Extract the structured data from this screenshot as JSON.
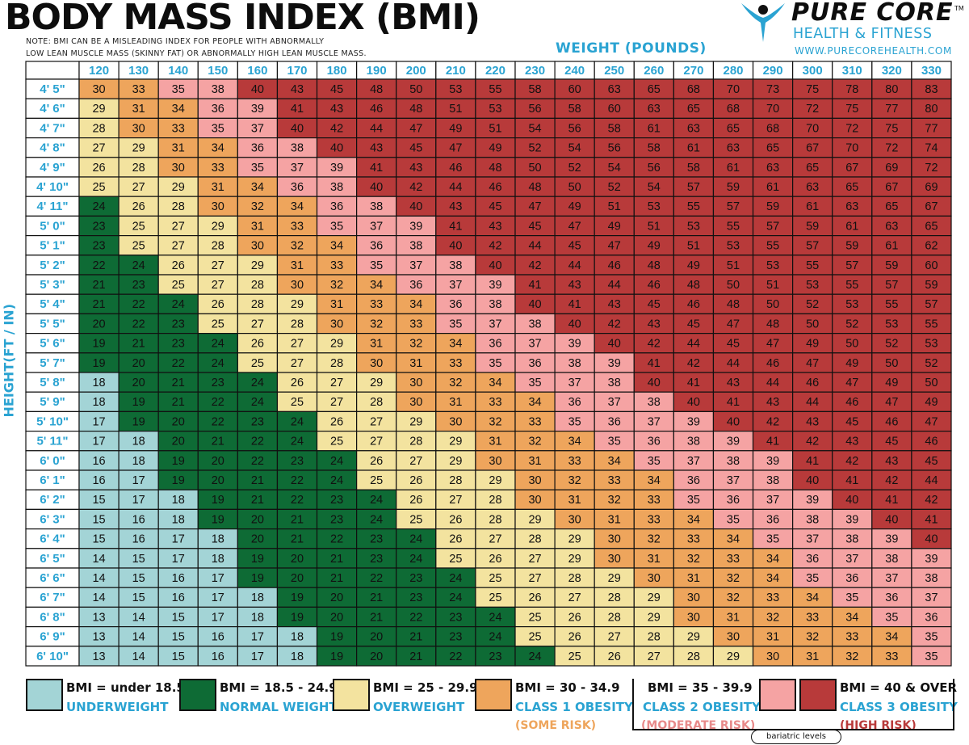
{
  "title": "BODY MASS INDEX  (BMI)",
  "note_line1": "NOTE: BMI CAN BE A MISLEADING INDEX FOR PEOPLE WITH ABNORMALLY",
  "note_line2": "LOW LEAN MUSCLE MASS (SKINNY FAT) OR ABNORMALLY HIGH LEAN MUSCLE MASS.",
  "brand": {
    "name": "PURE CORE",
    "tm": "TM",
    "tagline": "HEALTH & FITNESS",
    "url": "WWW.PURECOREHEALTH.COM"
  },
  "colors": {
    "underweight": "#a3d4d6",
    "normal": "#0e6b35",
    "overweight": "#f3e39f",
    "obese1": "#eea55c",
    "obese2": "#f5a3a3",
    "obese3": "#b83a3a",
    "header_bg": "#ffffff",
    "accent": "#2aa3d2"
  },
  "legend": [
    {
      "range": "BMI = under 18.5",
      "label": "UNDERWEIGHT",
      "sub": "",
      "color_key": "underweight"
    },
    {
      "range": "BMI = 18.5 - 24.9",
      "label": "NORMAL WEIGHT",
      "sub": "",
      "color_key": "normal"
    },
    {
      "range": "BMI = 25 - 29.9",
      "label": "OVERWEIGHT",
      "sub": "",
      "color_key": "overweight"
    },
    {
      "range": "BMI = 30 - 34.9",
      "label": "CLASS 1 OBESITY",
      "sub": "(SOME RISK)",
      "color_key": "obese1"
    },
    {
      "range": "BMI = 35 - 39.9",
      "label": "CLASS 2 OBESITY",
      "sub": "(MODERATE RISK)",
      "color_key": "obese2"
    },
    {
      "range": "BMI = 40 & OVER",
      "label": "CLASS 3 OBESITY",
      "sub": "(HIGH RISK)",
      "color_key": "obese3"
    }
  ],
  "bariatric_label": "bariatric levels",
  "chart_data": {
    "type": "heatmap",
    "title": "BODY MASS INDEX  (BMI)",
    "xlabel": "WEIGHT (POUNDS)",
    "ylabel": "HEIGHT(FT / IN)",
    "x": [
      120,
      130,
      140,
      150,
      160,
      170,
      180,
      190,
      200,
      210,
      220,
      230,
      240,
      250,
      260,
      270,
      280,
      290,
      300,
      310,
      320,
      330
    ],
    "y": [
      "4' 5\"",
      "4' 6\"",
      "4' 7\"",
      "4' 8\"",
      "4' 9\"",
      "4' 10\"",
      "4' 11\"",
      "5' 0\"",
      "5' 1\"",
      "5' 2\"",
      "5' 3\"",
      "5' 4\"",
      "5' 5\"",
      "5' 6\"",
      "5' 7\"",
      "5' 8\"",
      "5' 9\"",
      "5' 10\"",
      "5' 11\"",
      "6' 0\"",
      "6' 1\"",
      "6' 2\"",
      "6' 3\"",
      "6' 4\"",
      "6' 5\"",
      "6' 6\"",
      "6' 7\"",
      "6' 8\"",
      "6' 9\"",
      "6' 10\""
    ],
    "values": [
      [
        30,
        33,
        35,
        38,
        40,
        43,
        45,
        48,
        50,
        53,
        55,
        58,
        60,
        63,
        65,
        68,
        70,
        73,
        75,
        78,
        80,
        83
      ],
      [
        29,
        31,
        34,
        36,
        39,
        41,
        43,
        46,
        48,
        51,
        53,
        56,
        58,
        60,
        63,
        65,
        68,
        70,
        72,
        75,
        77,
        80
      ],
      [
        28,
        30,
        33,
        35,
        37,
        40,
        42,
        44,
        47,
        49,
        51,
        54,
        56,
        58,
        61,
        63,
        65,
        68,
        70,
        72,
        75,
        77
      ],
      [
        27,
        29,
        31,
        34,
        36,
        38,
        40,
        43,
        45,
        47,
        49,
        52,
        54,
        56,
        58,
        61,
        63,
        65,
        67,
        70,
        72,
        74
      ],
      [
        26,
        28,
        30,
        33,
        35,
        37,
        39,
        41,
        43,
        46,
        48,
        50,
        52,
        54,
        56,
        58,
        61,
        63,
        65,
        67,
        69,
        72
      ],
      [
        25,
        27,
        29,
        31,
        34,
        36,
        38,
        40,
        42,
        44,
        46,
        48,
        50,
        52,
        54,
        57,
        59,
        61,
        63,
        65,
        67,
        69
      ],
      [
        24,
        26,
        28,
        30,
        32,
        34,
        36,
        38,
        40,
        43,
        45,
        47,
        49,
        51,
        53,
        55,
        57,
        59,
        61,
        63,
        65,
        67
      ],
      [
        23,
        25,
        27,
        29,
        31,
        33,
        35,
        37,
        39,
        41,
        43,
        45,
        47,
        49,
        51,
        53,
        55,
        57,
        59,
        61,
        63,
        65
      ],
      [
        23,
        25,
        27,
        28,
        30,
        32,
        34,
        36,
        38,
        40,
        42,
        44,
        45,
        47,
        49,
        51,
        53,
        55,
        57,
        59,
        61,
        62
      ],
      [
        22,
        24,
        26,
        27,
        29,
        31,
        33,
        35,
        37,
        38,
        40,
        42,
        44,
        46,
        48,
        49,
        51,
        53,
        55,
        57,
        59,
        60
      ],
      [
        21,
        23,
        25,
        27,
        28,
        30,
        32,
        34,
        36,
        37,
        39,
        41,
        43,
        44,
        46,
        48,
        50,
        51,
        53,
        55,
        57,
        59
      ],
      [
        21,
        22,
        24,
        26,
        28,
        29,
        31,
        33,
        34,
        36,
        38,
        40,
        41,
        43,
        45,
        46,
        48,
        50,
        52,
        53,
        55,
        57
      ],
      [
        20,
        22,
        23,
        25,
        27,
        28,
        30,
        32,
        33,
        35,
        37,
        38,
        40,
        42,
        43,
        45,
        47,
        48,
        50,
        52,
        53,
        55
      ],
      [
        19,
        21,
        23,
        24,
        26,
        27,
        29,
        31,
        32,
        34,
        36,
        37,
        39,
        40,
        42,
        44,
        45,
        47,
        49,
        50,
        52,
        53
      ],
      [
        19,
        20,
        22,
        24,
        25,
        27,
        28,
        30,
        31,
        33,
        35,
        36,
        38,
        39,
        41,
        42,
        44,
        46,
        47,
        49,
        50,
        52
      ],
      [
        18,
        20,
        21,
        23,
        24,
        26,
        27,
        29,
        30,
        32,
        34,
        35,
        37,
        38,
        40,
        41,
        43,
        44,
        46,
        47,
        49,
        50
      ],
      [
        18,
        19,
        21,
        22,
        24,
        25,
        27,
        28,
        30,
        31,
        33,
        34,
        36,
        37,
        38,
        40,
        41,
        43,
        44,
        46,
        47,
        49
      ],
      [
        17,
        19,
        20,
        22,
        23,
        24,
        26,
        27,
        29,
        30,
        32,
        33,
        35,
        36,
        37,
        39,
        40,
        42,
        43,
        45,
        46,
        47
      ],
      [
        17,
        18,
        20,
        21,
        22,
        24,
        25,
        27,
        28,
        29,
        31,
        32,
        34,
        35,
        36,
        38,
        39,
        41,
        42,
        43,
        45,
        46
      ],
      [
        16,
        18,
        19,
        20,
        22,
        23,
        24,
        26,
        27,
        29,
        30,
        31,
        33,
        34,
        35,
        37,
        38,
        39,
        41,
        42,
        43,
        45
      ],
      [
        16,
        17,
        19,
        20,
        21,
        22,
        24,
        25,
        26,
        28,
        29,
        30,
        32,
        33,
        34,
        36,
        37,
        38,
        40,
        41,
        42,
        44
      ],
      [
        15,
        17,
        18,
        19,
        21,
        22,
        23,
        24,
        26,
        27,
        28,
        30,
        31,
        32,
        33,
        35,
        36,
        37,
        39,
        40,
        41,
        42
      ],
      [
        15,
        16,
        18,
        19,
        20,
        21,
        23,
        24,
        25,
        26,
        28,
        29,
        30,
        31,
        33,
        34,
        35,
        36,
        38,
        39,
        40,
        41
      ],
      [
        15,
        16,
        17,
        18,
        20,
        21,
        22,
        23,
        24,
        26,
        27,
        28,
        29,
        30,
        32,
        33,
        34,
        35,
        37,
        38,
        39,
        40
      ],
      [
        14,
        15,
        17,
        18,
        19,
        20,
        21,
        23,
        24,
        25,
        26,
        27,
        29,
        30,
        31,
        32,
        33,
        34,
        36,
        37,
        38,
        39
      ],
      [
        14,
        15,
        16,
        17,
        19,
        20,
        21,
        22,
        23,
        24,
        25,
        27,
        28,
        29,
        30,
        31,
        32,
        34,
        35,
        36,
        37,
        38
      ],
      [
        14,
        15,
        16,
        17,
        18,
        19,
        20,
        21,
        23,
        24,
        25,
        26,
        27,
        28,
        29,
        30,
        32,
        33,
        34,
        35,
        36,
        37
      ],
      [
        13,
        14,
        15,
        17,
        18,
        19,
        20,
        21,
        22,
        23,
        24,
        25,
        26,
        28,
        29,
        30,
        31,
        32,
        33,
        34,
        35,
        36
      ],
      [
        13,
        14,
        15,
        16,
        17,
        18,
        19,
        20,
        21,
        23,
        24,
        25,
        26,
        27,
        28,
        29,
        30,
        31,
        32,
        33,
        34,
        35
      ],
      [
        13,
        14,
        15,
        16,
        17,
        18,
        19,
        20,
        21,
        22,
        23,
        24,
        25,
        26,
        27,
        28,
        29,
        30,
        31,
        32,
        33,
        35
      ]
    ],
    "thresholds": [
      18.5,
      25,
      30,
      35,
      40
    ],
    "legend_position": "bottom"
  }
}
